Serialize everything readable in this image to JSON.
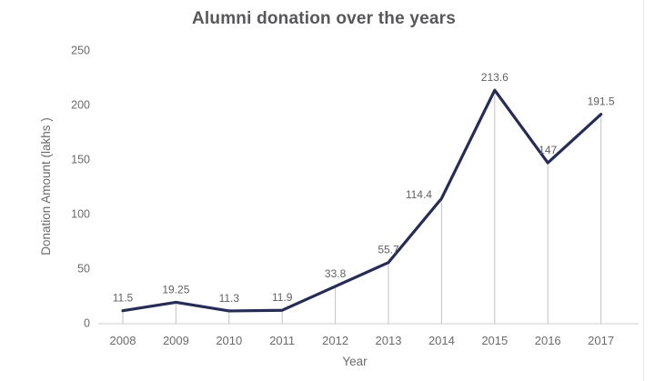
{
  "window": {
    "background": "#ffffff"
  },
  "chart_data": {
    "type": "line",
    "title": "Alumni donation over the years",
    "xlabel": "Year",
    "ylabel": "Donation Amount (lakhs )",
    "categories": [
      "2008",
      "2009",
      "2010",
      "2011",
      "2012",
      "2013",
      "2014",
      "2015",
      "2016",
      "2017"
    ],
    "values": [
      11.5,
      19.25,
      11.3,
      11.9,
      33.8,
      55.7,
      114.4,
      213.6,
      147,
      191.5
    ],
    "value_labels": [
      "11.5",
      "19.25",
      "11.3",
      "11.9",
      "33.8",
      "55.7",
      "114.4",
      "213.6",
      "147",
      "191.5"
    ],
    "yticks": [
      0,
      50,
      100,
      150,
      200,
      250
    ],
    "ylim": [
      0,
      250
    ],
    "grid": "off",
    "drop_lines": "vertical-from-each-point",
    "legend": "none",
    "markers": "none",
    "label_offsets": {
      "dx": [
        0,
        0,
        0,
        0,
        0,
        0,
        -25,
        0,
        0,
        0
      ],
      "dy": [
        0,
        0,
        0,
        0,
        0,
        0,
        10,
        0,
        0,
        0
      ]
    },
    "colors": {
      "line": "#262c55",
      "drop_line": "#c3c3c3",
      "axis_line": "#cccccc",
      "tick_text": "#6b6b6d",
      "data_label_text": "#616164",
      "axis_title_text": "#6b6b6d",
      "title_text": "#58585b"
    }
  }
}
